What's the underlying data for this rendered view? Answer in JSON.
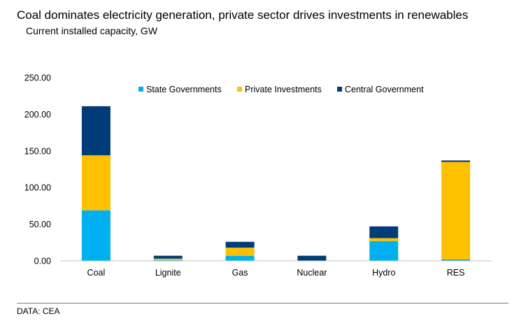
{
  "header": {
    "title": "Coal dominates electricity generation, private sector drives investments in renewables",
    "subtitle": "Current installed capacity, GW"
  },
  "footer": {
    "source": "DATA: CEA"
  },
  "chart_data": {
    "type": "bar",
    "stacked": true,
    "title": "Coal dominates electricity generation, private sector drives investments in renewables",
    "subtitle": "Current installed capacity, GW",
    "xlabel": "",
    "ylabel": "",
    "ylim": [
      0,
      250
    ],
    "yticks": [
      0,
      50,
      100,
      150,
      200,
      250
    ],
    "ytick_labels": [
      "0.00",
      "50.00",
      "100.00",
      "150.00",
      "200.00",
      "250.00"
    ],
    "grid": false,
    "legend_position": "top",
    "categories": [
      "Coal",
      "Lignite",
      "Gas",
      "Nuclear",
      "Hydro",
      "RES"
    ],
    "series": [
      {
        "name": "State Governments",
        "color": "#00b0f0",
        "values": [
          69,
          1,
          7,
          0,
          27,
          2
        ]
      },
      {
        "name": "Private Investments",
        "color": "#ffc000",
        "values": [
          75,
          2,
          11,
          0,
          4,
          133
        ]
      },
      {
        "name": "Central Government",
        "color": "#003c78",
        "values": [
          67,
          4,
          8,
          7,
          16,
          2
        ]
      }
    ]
  }
}
